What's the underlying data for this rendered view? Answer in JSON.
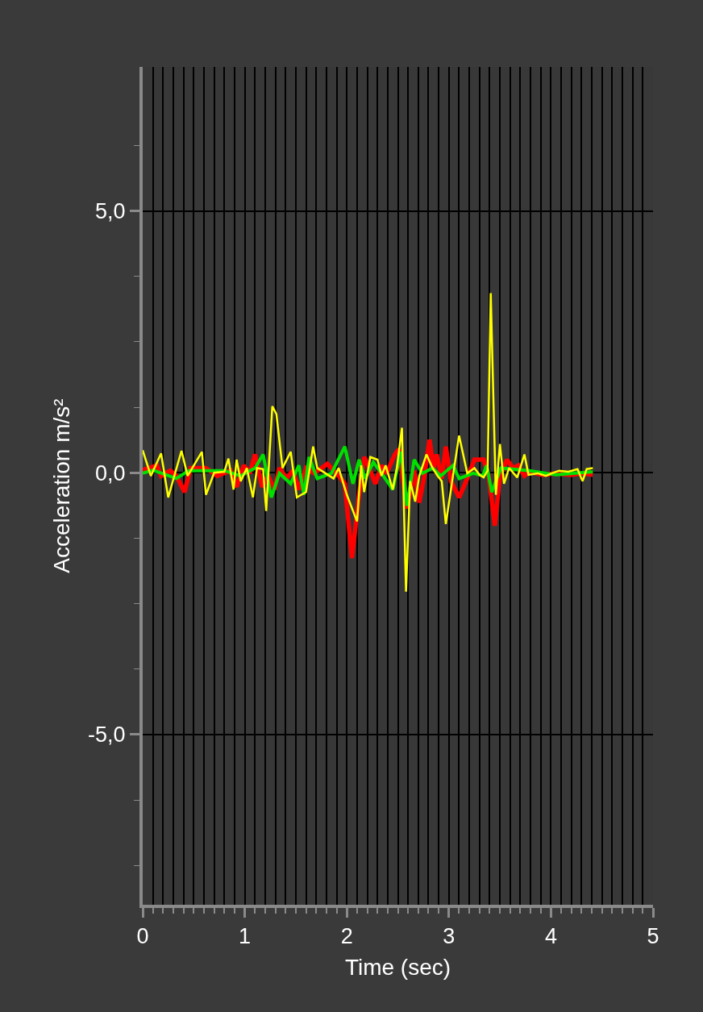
{
  "chart_data": {
    "type": "line",
    "xlabel": "Time (sec)",
    "ylabel": "Acceleration m/s²",
    "xlim": [
      0,
      5
    ],
    "ylim": [
      -8.25,
      7.75
    ],
    "xticks": [
      0,
      1,
      2,
      3,
      4,
      5,
      {
        "value": 0.1,
        "label": null
      },
      {
        "value": 0.2,
        "label": null
      },
      {
        "value": 0.3,
        "label": null
      },
      {
        "value": 0.4,
        "label": null
      },
      {
        "value": 0.5,
        "label": null
      },
      {
        "value": 0.6,
        "label": null
      },
      {
        "value": 0.7,
        "label": null
      },
      {
        "value": 0.8,
        "label": null
      },
      {
        "value": 0.9,
        "label": null
      },
      {
        "value": 1.1,
        "label": null
      },
      {
        "value": 1.2,
        "label": null
      },
      {
        "value": 1.3,
        "label": null
      },
      {
        "value": 1.4,
        "label": null
      },
      {
        "value": 1.5,
        "label": null
      },
      {
        "value": 1.6,
        "label": null
      },
      {
        "value": 1.7,
        "label": null
      },
      {
        "value": 1.8,
        "label": null
      },
      {
        "value": 1.9,
        "label": null
      },
      {
        "value": 2.1,
        "label": null
      },
      {
        "value": 2.2,
        "label": null
      },
      {
        "value": 2.3,
        "label": null
      },
      {
        "value": 2.4,
        "label": null
      },
      {
        "value": 2.5,
        "label": null
      },
      {
        "value": 2.6,
        "label": null
      },
      {
        "value": 2.7,
        "label": null
      },
      {
        "value": 2.8,
        "label": null
      },
      {
        "value": 2.9,
        "label": null
      },
      {
        "value": 3.1,
        "label": null
      },
      {
        "value": 3.2,
        "label": null
      },
      {
        "value": 3.3,
        "label": null
      },
      {
        "value": 3.4,
        "label": null
      },
      {
        "value": 3.5,
        "label": null
      },
      {
        "value": 3.6,
        "label": null
      },
      {
        "value": 3.7,
        "label": null
      },
      {
        "value": 3.8,
        "label": null
      },
      {
        "value": 3.9,
        "label": null
      },
      {
        "value": 4.1,
        "label": null
      },
      {
        "value": 4.2,
        "label": null
      },
      {
        "value": 4.3,
        "label": null
      },
      {
        "value": 4.4,
        "label": null
      },
      {
        "value": 4.5,
        "label": null
      },
      {
        "value": 4.6,
        "label": null
      },
      {
        "value": 4.7,
        "label": null
      },
      {
        "value": 4.8,
        "label": null
      },
      {
        "value": 4.9,
        "label": null
      }
    ],
    "yticks": [
      {
        "value": 5,
        "label": "5,0"
      },
      {
        "value": 0,
        "label": "0,0"
      },
      {
        "value": -5,
        "label": "-5,0"
      },
      {
        "value": 6.25,
        "label": null
      },
      {
        "value": 3.75,
        "label": null
      },
      {
        "value": 2.5,
        "label": null
      },
      {
        "value": 1.25,
        "label": null
      },
      {
        "value": -1.25,
        "label": null
      },
      {
        "value": -2.5,
        "label": null
      },
      {
        "value": -3.75,
        "label": null
      },
      {
        "value": -6.25,
        "label": null
      },
      {
        "value": -7.5,
        "label": null
      }
    ],
    "grid": true,
    "marker": "none",
    "line_style": "solid",
    "series": [
      {
        "color": "#ff0000",
        "x": [
          0,
          0.14,
          0.18,
          0.27,
          0.33,
          0.41,
          0.47,
          0.58,
          0.62,
          0.73,
          0.86,
          0.92,
          0.99,
          1.05,
          1.1,
          1.17,
          1.23,
          1.29,
          1.34,
          1.41,
          1.47,
          1.53,
          1.6,
          1.68,
          1.81,
          1.92,
          1.98,
          2.05,
          2.12,
          2.17,
          2.22,
          2.28,
          2.34,
          2.39,
          2.47,
          2.51,
          2.59,
          2.66,
          2.71,
          2.76,
          2.81,
          2.85,
          2.88,
          2.93,
          2.97,
          3.02,
          3.1,
          3.18,
          3.25,
          3.34,
          3.39,
          3.45,
          3.5,
          3.57,
          3.63,
          3.68,
          3.74,
          3.79,
          3.92,
          4.05,
          4.19,
          4.31,
          4.41
        ],
        "values": [
          0.05,
          0.14,
          -0.06,
          0.04,
          -0.06,
          -0.37,
          0.09,
          0.09,
          0.09,
          -0.06,
          0.04,
          -0.27,
          0.14,
          -0.01,
          0.35,
          -0.27,
          -0.06,
          -0.32,
          0.09,
          -0.11,
          0.04,
          -0.32,
          0.09,
          -0.01,
          0.17,
          -0.06,
          -0.21,
          -1.63,
          -0.42,
          0.3,
          0.09,
          -0.21,
          0.14,
          -0.01,
          0.35,
          0.45,
          -0.68,
          0.04,
          -0.57,
          -0.06,
          0.63,
          0.09,
          0.35,
          -0.11,
          0.5,
          -0.16,
          -0.47,
          -0.11,
          0.25,
          0.25,
          -0.06,
          -1.01,
          -0.06,
          0.25,
          0.09,
          0.14,
          -0.06,
          0.02,
          -0.04,
          -0.01,
          -0.04,
          -0.01,
          -0.04
        ]
      },
      {
        "color": "#00e000",
        "x": [
          0,
          0.1,
          0.33,
          0.45,
          0.8,
          0.96,
          1.05,
          1.1,
          1.18,
          1.26,
          1.34,
          1.45,
          1.53,
          1.58,
          1.63,
          1.71,
          1.85,
          1.98,
          2.06,
          2.12,
          2.18,
          2.26,
          2.34,
          2.45,
          2.53,
          2.59,
          2.66,
          2.74,
          2.84,
          2.92,
          3.04,
          3.1,
          3.24,
          3.33,
          3.37,
          3.42,
          3.51,
          3.79,
          4.05,
          4.41
        ],
        "values": [
          -0.01,
          0.05,
          -0.11,
          0.04,
          0.04,
          -0.06,
          0.04,
          0.09,
          0.35,
          -0.47,
          -0.01,
          -0.21,
          0.14,
          -0.42,
          0.3,
          -0.11,
          -0.01,
          0.5,
          -0.21,
          0.25,
          -0.11,
          0.2,
          -0.01,
          -0.32,
          0.4,
          -0.63,
          0.25,
          -0.01,
          0.09,
          -0.06,
          0.14,
          -0.11,
          -0.01,
          -0.06,
          0.14,
          -0.37,
          0.09,
          0.04,
          -0.04,
          0.02
        ]
      },
      {
        "color": "#ffff00",
        "x": [
          0,
          0.08,
          0.18,
          0.25,
          0.38,
          0.44,
          0.58,
          0.62,
          0.7,
          0.8,
          0.84,
          0.89,
          0.92,
          0.96,
          1.02,
          1.08,
          1.12,
          1.18,
          1.21,
          1.27,
          1.31,
          1.37,
          1.45,
          1.51,
          1.6,
          1.67,
          1.71,
          1.87,
          1.92,
          2.0,
          2.1,
          2.14,
          2.17,
          2.23,
          2.3,
          2.34,
          2.38,
          2.45,
          2.49,
          2.54,
          2.58,
          2.62,
          2.67,
          2.71,
          2.78,
          2.84,
          2.89,
          2.93,
          2.97,
          3.04,
          3.1,
          3.18,
          3.25,
          3.3,
          3.34,
          3.38,
          3.41,
          3.46,
          3.5,
          3.54,
          3.59,
          3.67,
          3.74,
          3.78,
          3.87,
          3.95,
          4.01,
          4.08,
          4.17,
          4.26,
          4.31,
          4.35,
          4.41
        ],
        "values": [
          0.43,
          -0.06,
          0.37,
          -0.47,
          0.42,
          -0.06,
          0.4,
          -0.42,
          0.0,
          0.02,
          0.27,
          -0.32,
          0.25,
          -0.16,
          0.09,
          -0.47,
          0.09,
          0.07,
          -0.73,
          1.27,
          1.12,
          0.09,
          0.4,
          -0.47,
          -0.37,
          0.5,
          0.09,
          -0.11,
          0.09,
          -0.42,
          -0.93,
          0.14,
          -0.37,
          0.3,
          0.25,
          -0.06,
          0.14,
          -0.32,
          0.09,
          0.86,
          -2.27,
          -0.16,
          -0.55,
          -0.06,
          0.35,
          0.09,
          -0.06,
          -0.16,
          -0.98,
          -0.06,
          0.71,
          -0.01,
          0.09,
          -0.04,
          -0.09,
          0.04,
          3.43,
          -0.42,
          0.55,
          -0.21,
          0.09,
          -0.09,
          0.35,
          -0.04,
          -0.01,
          -0.06,
          -0.01,
          0.04,
          0.02,
          0.07,
          -0.16,
          0.07,
          0.09
        ]
      }
    ]
  }
}
